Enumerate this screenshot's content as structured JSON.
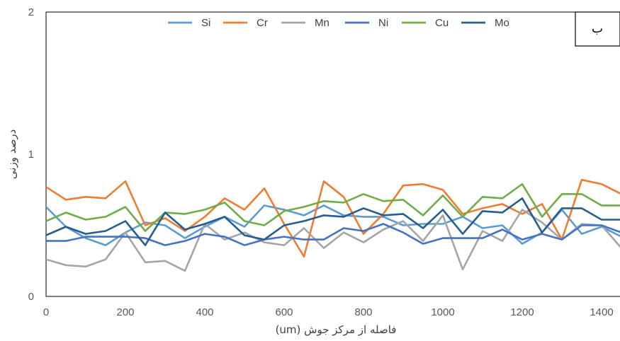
{
  "chart_data": {
    "type": "line",
    "title": "",
    "xlabel": "فاصله از مرکز جوش (um)",
    "ylabel": "درصد وزنی",
    "panel_label": "ب",
    "xlim": [
      0,
      1450
    ],
    "ylim": [
      0,
      2
    ],
    "x_ticks": [
      0,
      200,
      400,
      600,
      800,
      1000,
      1200,
      1400
    ],
    "y_ticks": [
      0,
      1,
      2
    ],
    "legend_position": "top",
    "grid": false,
    "x": [
      0,
      50,
      100,
      150,
      200,
      250,
      300,
      350,
      400,
      450,
      500,
      550,
      600,
      650,
      700,
      750,
      800,
      850,
      900,
      950,
      1000,
      1050,
      1100,
      1150,
      1200,
      1250,
      1300,
      1350,
      1400,
      1450
    ],
    "series": [
      {
        "name": "Si",
        "color": "#5b9bd5",
        "values": [
          0.63,
          0.49,
          0.41,
          0.36,
          0.45,
          0.52,
          0.5,
          0.41,
          0.49,
          0.56,
          0.49,
          0.64,
          0.61,
          0.57,
          0.64,
          0.57,
          0.56,
          0.56,
          0.5,
          0.51,
          0.51,
          0.56,
          0.48,
          0.5,
          0.37,
          0.45,
          0.61,
          0.44,
          0.49,
          0.42
        ]
      },
      {
        "name": "Cr",
        "color": "#ed7d31",
        "values": [
          0.77,
          0.68,
          0.7,
          0.69,
          0.81,
          0.5,
          0.55,
          0.46,
          0.56,
          0.69,
          0.61,
          0.76,
          0.51,
          0.28,
          0.81,
          0.7,
          0.44,
          0.58,
          0.78,
          0.79,
          0.75,
          0.58,
          0.62,
          0.65,
          0.58,
          0.65,
          0.4,
          0.82,
          0.79,
          0.72
        ]
      },
      {
        "name": "Mn",
        "color": "#a5a5a5",
        "values": [
          0.26,
          0.22,
          0.21,
          0.26,
          0.45,
          0.24,
          0.25,
          0.18,
          0.51,
          0.4,
          0.45,
          0.38,
          0.36,
          0.48,
          0.34,
          0.45,
          0.38,
          0.47,
          0.53,
          0.39,
          0.57,
          0.19,
          0.46,
          0.39,
          0.61,
          0.52,
          0.4,
          0.51,
          0.5,
          0.34
        ]
      },
      {
        "name": "Ni",
        "color": "#4472c4",
        "values": [
          0.39,
          0.39,
          0.42,
          0.42,
          0.42,
          0.41,
          0.36,
          0.39,
          0.44,
          0.42,
          0.36,
          0.4,
          0.42,
          0.4,
          0.4,
          0.48,
          0.46,
          0.51,
          0.45,
          0.37,
          0.41,
          0.41,
          0.41,
          0.47,
          0.4,
          0.44,
          0.4,
          0.5,
          0.5,
          0.45
        ]
      },
      {
        "name": "Cu",
        "color": "#70ad47",
        "values": [
          0.53,
          0.59,
          0.54,
          0.56,
          0.63,
          0.46,
          0.59,
          0.58,
          0.61,
          0.66,
          0.53,
          0.5,
          0.6,
          0.63,
          0.67,
          0.66,
          0.72,
          0.67,
          0.68,
          0.57,
          0.71,
          0.56,
          0.7,
          0.69,
          0.79,
          0.56,
          0.72,
          0.72,
          0.64,
          0.64
        ]
      },
      {
        "name": "Mo",
        "color": "#255e91",
        "values": [
          0.43,
          0.49,
          0.44,
          0.46,
          0.53,
          0.36,
          0.59,
          0.47,
          0.51,
          0.56,
          0.43,
          0.4,
          0.5,
          0.53,
          0.57,
          0.56,
          0.62,
          0.57,
          0.58,
          0.48,
          0.61,
          0.44,
          0.6,
          0.59,
          0.69,
          0.45,
          0.62,
          0.62,
          0.54,
          0.54
        ]
      }
    ]
  }
}
